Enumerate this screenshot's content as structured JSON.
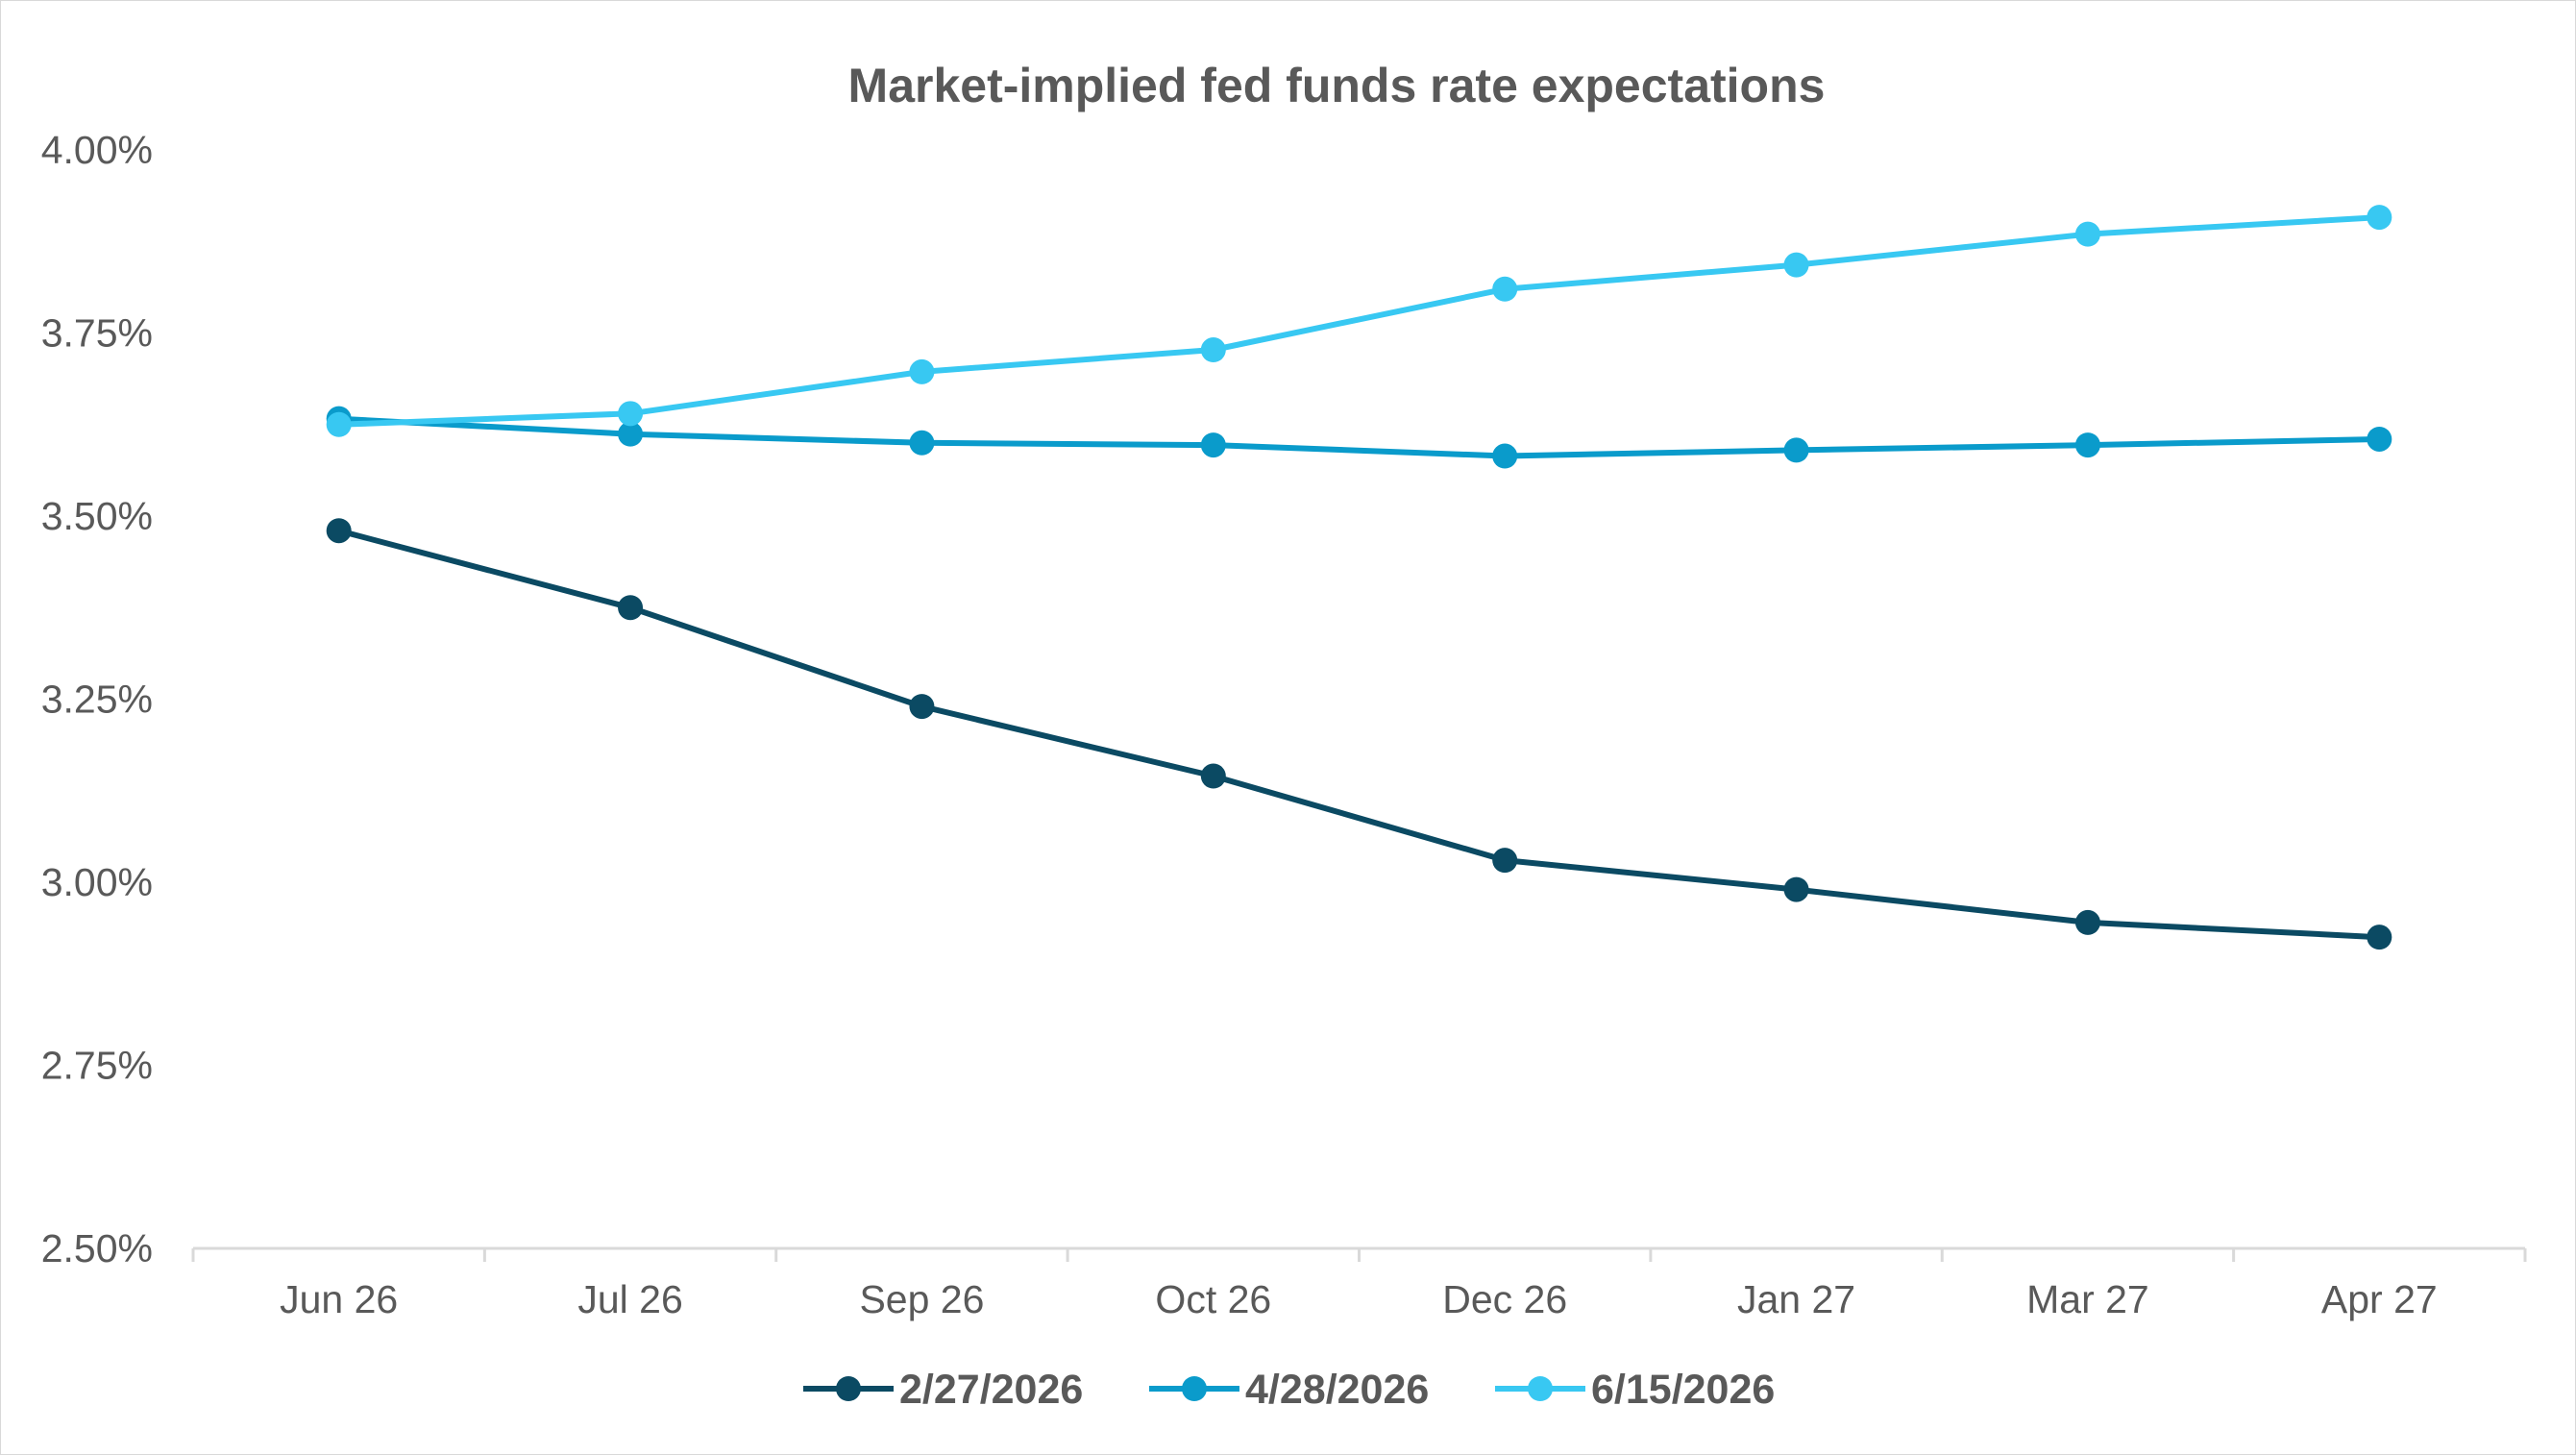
{
  "chart_data": {
    "type": "line",
    "title": "Market-implied fed funds rate expectations",
    "xlabel": "",
    "ylabel": "",
    "categories": [
      "Jun 26",
      "Jul 26",
      "Sep 26",
      "Oct 26",
      "Dec 26",
      "Jan 27",
      "Mar 27",
      "Apr 27"
    ],
    "ylim": [
      2.5,
      4.0
    ],
    "yticks": [
      2.5,
      2.75,
      3.0,
      3.25,
      3.5,
      3.75,
      4.0
    ],
    "ytick_labels": [
      "2.50%",
      "2.75%",
      "3.00%",
      "3.25%",
      "3.50%",
      "3.75%",
      "4.00%"
    ],
    "grid": false,
    "legend_position": "bottom",
    "series": [
      {
        "name": "2/27/2026",
        "color": "#0b4a63",
        "values": [
          3.48,
          3.375,
          3.24,
          3.145,
          3.03,
          2.99,
          2.945,
          2.925
        ]
      },
      {
        "name": "4/28/2026",
        "color": "#0a9bcb",
        "values": [
          3.633,
          3.612,
          3.6,
          3.597,
          3.582,
          3.59,
          3.597,
          3.605
        ]
      },
      {
        "name": "6/15/2026",
        "color": "#38c8f2",
        "values": [
          3.625,
          3.64,
          3.697,
          3.727,
          3.81,
          3.843,
          3.885,
          3.908
        ]
      }
    ]
  }
}
